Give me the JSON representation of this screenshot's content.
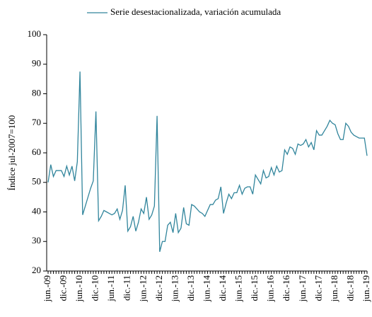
{
  "chart_data": {
    "type": "line",
    "y_label": "Índice jul-2007=100",
    "ylim": [
      20,
      100
    ],
    "yticks": [
      20,
      30,
      40,
      50,
      60,
      70,
      80,
      90,
      100
    ],
    "categories": [
      "jun.-09",
      null,
      null,
      null,
      null,
      null,
      "dic.-09",
      null,
      null,
      null,
      null,
      null,
      "jun.-10",
      null,
      null,
      null,
      null,
      null,
      "dic.-10",
      null,
      null,
      null,
      null,
      null,
      "jun.-11",
      null,
      null,
      null,
      null,
      null,
      "dic.-11",
      null,
      null,
      null,
      null,
      null,
      "jun.-12",
      null,
      null,
      null,
      null,
      null,
      "dic.-12",
      null,
      null,
      null,
      null,
      null,
      "jun.-13",
      null,
      null,
      null,
      null,
      null,
      "dic.-13",
      null,
      null,
      null,
      null,
      null,
      "jun.-14",
      null,
      null,
      null,
      null,
      null,
      "dic.-14",
      null,
      null,
      null,
      null,
      null,
      "jun.-15",
      null,
      null,
      null,
      null,
      null,
      "dic.-15",
      null,
      null,
      null,
      null,
      null,
      "jun.-16",
      null,
      null,
      null,
      null,
      null,
      "dic.-16",
      null,
      null,
      null,
      null,
      null,
      "jun.-17",
      null,
      null,
      null,
      null,
      null,
      "dic.-17",
      null,
      null,
      null,
      null,
      null,
      "jun.-18",
      null,
      null,
      null,
      null,
      null,
      "dic.-18",
      null,
      null,
      null,
      null,
      null,
      "jun.-19"
    ],
    "series": [
      {
        "name": "Serie desestacionalizada, variación acumulada",
        "color": "#31859c",
        "values": [
          50,
          56,
          52,
          54,
          54,
          54,
          52,
          55.5,
          52.5,
          55.5,
          50.5,
          57,
          87.5,
          39,
          42,
          45,
          48,
          50.5,
          74,
          37,
          38.5,
          40.5,
          40,
          39.5,
          39,
          39.5,
          41,
          37.5,
          40.5,
          49,
          33.5,
          35,
          38.5,
          33.5,
          36.5,
          41,
          39.5,
          45,
          37.5,
          39,
          42,
          72.5,
          26.5,
          30,
          30,
          35.5,
          36.5,
          33,
          39.5,
          33,
          34.5,
          41.5,
          36,
          35.5,
          42.5,
          42,
          41,
          40,
          39.5,
          38.5,
          40.5,
          42.5,
          42.5,
          44,
          44.5,
          48.5,
          39.5,
          43,
          46,
          44.5,
          46.5,
          46.5,
          49,
          46,
          48,
          48.5,
          48.5,
          46,
          52.5,
          51,
          49.5,
          54,
          51.5,
          52,
          55,
          52.5,
          55.5,
          53.5,
          54,
          61,
          59.5,
          62,
          61.5,
          59.5,
          63,
          62.5,
          63,
          64.5,
          62,
          63.5,
          61,
          67.5,
          66,
          66,
          67.5,
          69,
          71,
          70,
          69.5,
          66.5,
          64.5,
          64.5,
          70,
          69,
          67,
          66,
          65.5,
          65,
          65,
          65,
          59
        ]
      }
    ],
    "legend": "top"
  }
}
